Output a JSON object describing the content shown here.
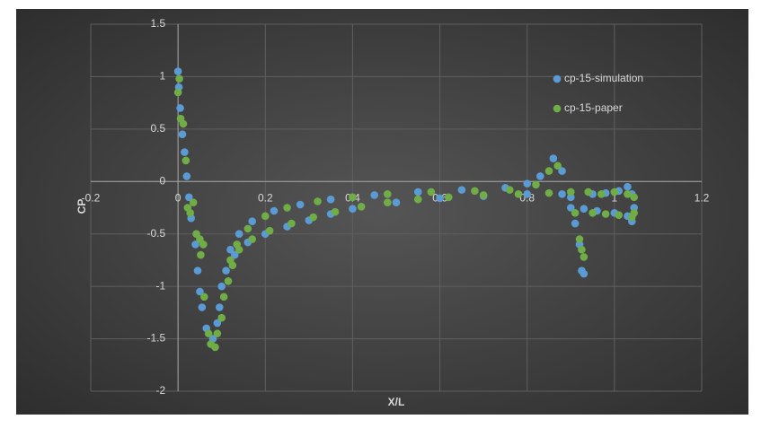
{
  "chart_data": {
    "type": "scatter",
    "x_label": "X/L",
    "y_label": "CP",
    "xlim": [
      -0.2,
      1.2
    ],
    "xticks": [
      -0.2,
      0,
      0.2,
      0.4,
      0.6,
      0.8,
      1,
      1.2
    ],
    "ylim": [
      -2,
      1.5
    ],
    "yticks": [
      -2,
      -1.5,
      -1,
      -0.5,
      0,
      0.5,
      1,
      1.5
    ],
    "grid": true,
    "legend": "right",
    "series": [
      {
        "name": "cp-15-simulation",
        "color": "#5b9bd5",
        "x": [
          0,
          0.002,
          0.005,
          0.01,
          0.015,
          0.02,
          0.025,
          0.03,
          0.04,
          0.045,
          0.05,
          0.055,
          0.065,
          0.08,
          0.09,
          0.095,
          0.1,
          0.11,
          0.13,
          0.16,
          0.2,
          0.25,
          0.3,
          0.35,
          0.4,
          0.5,
          0.6,
          0.7,
          0.8,
          0.88,
          0.12,
          0.14,
          0.17,
          0.22,
          0.28,
          0.35,
          0.45,
          0.55,
          0.65,
          0.75,
          0.8,
          0.83,
          0.86,
          0.88,
          0.9,
          0.91,
          0.92,
          0.925,
          0.93,
          0.9,
          0.93,
          0.96,
          1.0,
          1.03,
          1.04,
          0.95,
          0.98,
          1.01,
          1.03,
          1.04,
          1.045
        ],
        "y": [
          1.05,
          0.9,
          0.7,
          0.45,
          0.28,
          0.05,
          -0.15,
          -0.35,
          -0.6,
          -0.85,
          -1.05,
          -1.2,
          -1.4,
          -1.5,
          -1.35,
          -1.2,
          -1.0,
          -0.85,
          -0.7,
          -0.58,
          -0.5,
          -0.43,
          -0.37,
          -0.31,
          -0.26,
          -0.2,
          -0.16,
          -0.14,
          -0.12,
          -0.12,
          -0.65,
          -0.5,
          -0.38,
          -0.28,
          -0.22,
          -0.17,
          -0.13,
          -0.1,
          -0.08,
          -0.06,
          -0.02,
          0.05,
          0.22,
          0.1,
          -0.15,
          -0.4,
          -0.6,
          -0.85,
          -0.88,
          -0.25,
          -0.26,
          -0.28,
          -0.3,
          -0.33,
          -0.38,
          -0.12,
          -0.11,
          -0.09,
          -0.05,
          -0.12,
          -0.25
        ]
      },
      {
        "name": "cp-15-paper",
        "color": "#70ad47",
        "x": [
          0,
          0.003,
          0.006,
          0.012,
          0.018,
          0.022,
          0.028,
          0.035,
          0.042,
          0.05,
          0.052,
          0.058,
          0.06,
          0.07,
          0.075,
          0.085,
          0.09,
          0.1,
          0.105,
          0.115,
          0.125,
          0.14,
          0.17,
          0.21,
          0.26,
          0.31,
          0.36,
          0.42,
          0.48,
          0.55,
          0.62,
          0.7,
          0.78,
          0.85,
          0.12,
          0.135,
          0.16,
          0.2,
          0.25,
          0.32,
          0.4,
          0.48,
          0.58,
          0.68,
          0.76,
          0.82,
          0.85,
          0.87,
          0.9,
          0.91,
          0.92,
          0.925,
          0.93,
          0.95,
          0.98,
          1.01,
          1.04,
          1.045,
          0.94,
          0.97,
          1.0,
          1.03,
          1.045
        ],
        "y": [
          0.85,
          0.98,
          0.6,
          0.55,
          0.2,
          -0.25,
          -0.3,
          -0.2,
          -0.5,
          -0.55,
          -0.7,
          -0.6,
          -1.1,
          -1.45,
          -1.55,
          -1.58,
          -1.45,
          -1.3,
          -1.1,
          -0.95,
          -0.8,
          -0.65,
          -0.55,
          -0.47,
          -0.4,
          -0.34,
          -0.29,
          -0.24,
          -0.2,
          -0.17,
          -0.15,
          -0.13,
          -0.12,
          -0.11,
          -0.75,
          -0.6,
          -0.45,
          -0.33,
          -0.25,
          -0.19,
          -0.15,
          -0.12,
          -0.1,
          -0.09,
          -0.08,
          -0.03,
          0.1,
          0.15,
          -0.1,
          -0.3,
          -0.55,
          -0.65,
          -0.72,
          -0.3,
          -0.31,
          -0.32,
          -0.34,
          -0.3,
          -0.1,
          -0.12,
          -0.1,
          -0.12,
          -0.15
        ]
      }
    ]
  }
}
